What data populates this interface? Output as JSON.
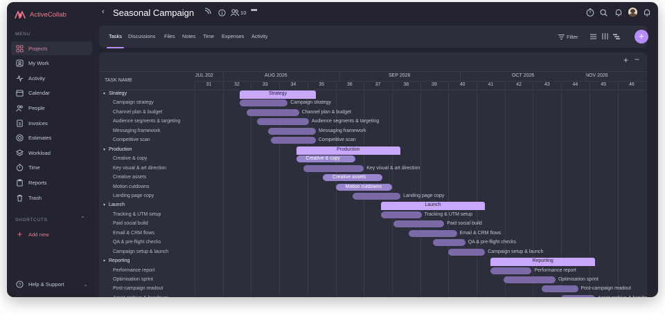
{
  "app": {
    "name": "ActiveCollab"
  },
  "sidebar": {
    "menu_label": "MENU",
    "items": [
      {
        "label": "Projects",
        "icon": "grid-icon",
        "active": true
      },
      {
        "label": "My Work",
        "icon": "user-square-icon"
      },
      {
        "label": "Activity",
        "icon": "activity-icon"
      },
      {
        "label": "Calendar",
        "icon": "calendar-icon"
      },
      {
        "label": "People",
        "icon": "people-icon"
      },
      {
        "label": "Invoices",
        "icon": "invoice-icon"
      },
      {
        "label": "Estimates",
        "icon": "estimate-icon"
      },
      {
        "label": "Workload",
        "icon": "layers-icon"
      },
      {
        "label": "Time",
        "icon": "timer-icon"
      },
      {
        "label": "Reports",
        "icon": "clipboard-icon"
      },
      {
        "label": "Trash",
        "icon": "trash-icon"
      }
    ],
    "shortcuts_label": "SHORTCUTS",
    "add_new": "Add new",
    "help": "Help & Support"
  },
  "header": {
    "title": "Seasonal Campaign",
    "members_count": "10"
  },
  "tabs": [
    "Tasks",
    "Discussions",
    "Files",
    "Notes",
    "Time",
    "Expenses",
    "Activity"
  ],
  "toolbar": {
    "filter_label": "Filter"
  },
  "gantt": {
    "column_header": "TASK NAME",
    "months": [
      "JUL 202",
      "AUG 2026",
      "SEP 2026",
      "OCT 2026",
      "NOV 2026"
    ],
    "weeks": [
      "31",
      "32",
      "33",
      "34",
      "35",
      "36",
      "37",
      "38",
      "39",
      "40",
      "41",
      "42",
      "43",
      "44",
      "45",
      "46"
    ],
    "rows": [
      {
        "label": "Strategy",
        "group": true,
        "bar_label": "Strategy"
      },
      {
        "label": "Campaign strategy",
        "bar_label": "Campaign strategy"
      },
      {
        "label": "Channel plan & budget",
        "bar_label": "Channel plan & budget"
      },
      {
        "label": "Audience segments & targeting",
        "bar_label": "Audience segments & targeting"
      },
      {
        "label": "Messaging framework",
        "bar_label": "Messaging framework"
      },
      {
        "label": "Competitive scan",
        "bar_label": "Competitive scan"
      },
      {
        "label": "Production",
        "group": true,
        "bar_label": "Production"
      },
      {
        "label": "Creative & copy",
        "bar_label": "Creative & copy"
      },
      {
        "label": "Key visual & art direction",
        "bar_label": "Key visual & art direction"
      },
      {
        "label": "Creative assets",
        "bar_label": "Creative assets"
      },
      {
        "label": "Motion cutdowns",
        "bar_label": "Motion cutdowns"
      },
      {
        "label": "Landing page copy",
        "bar_label": "Landing page copy"
      },
      {
        "label": "Launch",
        "group": true,
        "bar_label": "Launch"
      },
      {
        "label": "Tracking & UTM setup",
        "bar_label": "Tracking & UTM setup"
      },
      {
        "label": "Paid social build",
        "bar_label": "Paid social build"
      },
      {
        "label": "Email & CRM flows",
        "bar_label": "Email & CRM flows"
      },
      {
        "label": "QA & pre-flight checks",
        "bar_label": "QA & pre-flight checks"
      },
      {
        "label": "Campaign setup & launch",
        "bar_label": "Campaign setup & launch"
      },
      {
        "label": "Reporting",
        "group": true,
        "bar_label": "Reporting"
      },
      {
        "label": "Performance report",
        "bar_label": "Performance report"
      },
      {
        "label": "Optimisation sprint",
        "bar_label": "Optimisation sprint"
      },
      {
        "label": "Post-campaign readout",
        "bar_label": "Post-campaign readout"
      },
      {
        "label": "Asset archive & handover",
        "bar_label": "Asset archive & handover"
      }
    ]
  },
  "colors": {
    "accent": "#f0798f",
    "bar": "#7b6aa7",
    "group_bar": "#c9a8fc",
    "add_button": "#b58cf8"
  }
}
